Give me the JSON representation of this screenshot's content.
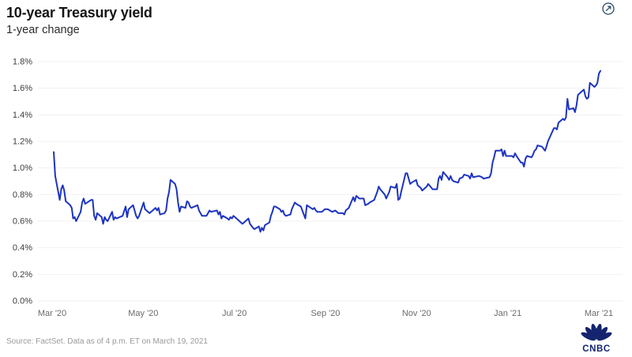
{
  "header": {
    "title": "10-year Treasury yield",
    "subtitle": "1-year change"
  },
  "controls": {
    "expand_icon": "expand-chart-icon"
  },
  "footer": {
    "source": "Source: FactSet. Data as of 4 p.m. ET on March 19, 2021",
    "logo_text": "CNBC"
  },
  "colors": {
    "line": "#1d34c1",
    "grid": "#f1f1f1",
    "y_tick_text": "#3d3d3d",
    "x_tick_text": "#6b6b6b",
    "logo_navy": "#14246e",
    "icon_navy": "#274a66"
  },
  "chart_data": {
    "type": "line",
    "title": "10-year Treasury yield",
    "subtitle": "1-year change",
    "unit": "%",
    "ylim": [
      0,
      1.8
    ],
    "y_tick_step": 0.2,
    "y_ticks": [
      "0.0%",
      "0.2%",
      "0.4%",
      "0.6%",
      "0.8%",
      "1.0%",
      "1.2%",
      "1.4%",
      "1.6%",
      "1.8%"
    ],
    "x_ticks": [
      "Mar '20",
      "May '20",
      "Jul '20",
      "Sep '20",
      "Nov '20",
      "Jan '21",
      "Mar '21"
    ],
    "grid": "horizontal",
    "legend": "none",
    "points": [
      [
        "2020-03-19",
        1.12
      ],
      [
        "2020-03-20",
        0.94
      ],
      [
        "2020-03-23",
        0.76
      ],
      [
        "2020-03-24",
        0.84
      ],
      [
        "2020-03-25",
        0.87
      ],
      [
        "2020-03-26",
        0.83
      ],
      [
        "2020-03-27",
        0.75
      ],
      [
        "2020-03-30",
        0.72
      ],
      [
        "2020-03-31",
        0.7
      ],
      [
        "2020-04-01",
        0.62
      ],
      [
        "2020-04-02",
        0.63
      ],
      [
        "2020-04-03",
        0.6
      ],
      [
        "2020-04-06",
        0.67
      ],
      [
        "2020-04-07",
        0.74
      ],
      [
        "2020-04-08",
        0.77
      ],
      [
        "2020-04-09",
        0.73
      ],
      [
        "2020-04-13",
        0.76
      ],
      [
        "2020-04-14",
        0.76
      ],
      [
        "2020-04-15",
        0.64
      ],
      [
        "2020-04-16",
        0.61
      ],
      [
        "2020-04-17",
        0.66
      ],
      [
        "2020-04-20",
        0.63
      ],
      [
        "2020-04-21",
        0.58
      ],
      [
        "2020-04-22",
        0.63
      ],
      [
        "2020-04-23",
        0.61
      ],
      [
        "2020-04-24",
        0.6
      ],
      [
        "2020-04-27",
        0.67
      ],
      [
        "2020-04-28",
        0.61
      ],
      [
        "2020-04-29",
        0.63
      ],
      [
        "2020-04-30",
        0.62
      ],
      [
        "2020-05-04",
        0.64
      ],
      [
        "2020-05-06",
        0.71
      ],
      [
        "2020-05-07",
        0.63
      ],
      [
        "2020-05-08",
        0.69
      ],
      [
        "2020-05-11",
        0.72
      ],
      [
        "2020-05-13",
        0.64
      ],
      [
        "2020-05-14",
        0.62
      ],
      [
        "2020-05-15",
        0.64
      ],
      [
        "2020-05-18",
        0.74
      ],
      [
        "2020-05-19",
        0.69
      ],
      [
        "2020-05-21",
        0.67
      ],
      [
        "2020-05-22",
        0.66
      ],
      [
        "2020-05-26",
        0.7
      ],
      [
        "2020-05-27",
        0.68
      ],
      [
        "2020-05-28",
        0.7
      ],
      [
        "2020-05-29",
        0.65
      ],
      [
        "2020-06-01",
        0.66
      ],
      [
        "2020-06-02",
        0.68
      ],
      [
        "2020-06-03",
        0.77
      ],
      [
        "2020-06-04",
        0.82
      ],
      [
        "2020-06-05",
        0.91
      ],
      [
        "2020-06-08",
        0.88
      ],
      [
        "2020-06-09",
        0.84
      ],
      [
        "2020-06-10",
        0.74
      ],
      [
        "2020-06-11",
        0.67
      ],
      [
        "2020-06-12",
        0.71
      ],
      [
        "2020-06-15",
        0.7
      ],
      [
        "2020-06-16",
        0.75
      ],
      [
        "2020-06-17",
        0.74
      ],
      [
        "2020-06-18",
        0.71
      ],
      [
        "2020-06-19",
        0.7
      ],
      [
        "2020-06-23",
        0.72
      ],
      [
        "2020-06-24",
        0.68
      ],
      [
        "2020-06-26",
        0.64
      ],
      [
        "2020-06-29",
        0.64
      ],
      [
        "2020-06-30",
        0.66
      ],
      [
        "2020-07-01",
        0.68
      ],
      [
        "2020-07-02",
        0.67
      ],
      [
        "2020-07-06",
        0.68
      ],
      [
        "2020-07-07",
        0.65
      ],
      [
        "2020-07-08",
        0.67
      ],
      [
        "2020-07-09",
        0.62
      ],
      [
        "2020-07-10",
        0.64
      ],
      [
        "2020-07-13",
        0.62
      ],
      [
        "2020-07-14",
        0.61
      ],
      [
        "2020-07-15",
        0.63
      ],
      [
        "2020-07-16",
        0.62
      ],
      [
        "2020-07-17",
        0.64
      ],
      [
        "2020-07-20",
        0.61
      ],
      [
        "2020-07-22",
        0.59
      ],
      [
        "2020-07-23",
        0.58
      ],
      [
        "2020-07-24",
        0.59
      ],
      [
        "2020-07-27",
        0.62
      ],
      [
        "2020-07-28",
        0.58
      ],
      [
        "2020-07-30",
        0.55
      ],
      [
        "2020-07-31",
        0.54
      ],
      [
        "2020-08-03",
        0.56
      ],
      [
        "2020-08-04",
        0.52
      ],
      [
        "2020-08-05",
        0.55
      ],
      [
        "2020-08-06",
        0.53
      ],
      [
        "2020-08-07",
        0.57
      ],
      [
        "2020-08-10",
        0.59
      ],
      [
        "2020-08-11",
        0.64
      ],
      [
        "2020-08-12",
        0.67
      ],
      [
        "2020-08-13",
        0.71
      ],
      [
        "2020-08-14",
        0.71
      ],
      [
        "2020-08-17",
        0.69
      ],
      [
        "2020-08-18",
        0.67
      ],
      [
        "2020-08-19",
        0.68
      ],
      [
        "2020-08-20",
        0.65
      ],
      [
        "2020-08-21",
        0.64
      ],
      [
        "2020-08-24",
        0.65
      ],
      [
        "2020-08-25",
        0.69
      ],
      [
        "2020-08-27",
        0.74
      ],
      [
        "2020-08-28",
        0.73
      ],
      [
        "2020-08-31",
        0.71
      ],
      [
        "2020-09-01",
        0.68
      ],
      [
        "2020-09-02",
        0.65
      ],
      [
        "2020-09-03",
        0.62
      ],
      [
        "2020-09-04",
        0.72
      ],
      [
        "2020-09-08",
        0.69
      ],
      [
        "2020-09-09",
        0.7
      ],
      [
        "2020-09-10",
        0.68
      ],
      [
        "2020-09-11",
        0.67
      ],
      [
        "2020-09-14",
        0.67
      ],
      [
        "2020-09-16",
        0.69
      ],
      [
        "2020-09-18",
        0.69
      ],
      [
        "2020-09-21",
        0.67
      ],
      [
        "2020-09-23",
        0.68
      ],
      [
        "2020-09-25",
        0.66
      ],
      [
        "2020-09-28",
        0.66
      ],
      [
        "2020-09-29",
        0.65
      ],
      [
        "2020-09-30",
        0.68
      ],
      [
        "2020-10-02",
        0.7
      ],
      [
        "2020-10-05",
        0.78
      ],
      [
        "2020-10-06",
        0.75
      ],
      [
        "2020-10-07",
        0.79
      ],
      [
        "2020-10-09",
        0.77
      ],
      [
        "2020-10-12",
        0.77
      ],
      [
        "2020-10-13",
        0.72
      ],
      [
        "2020-10-15",
        0.73
      ],
      [
        "2020-10-16",
        0.74
      ],
      [
        "2020-10-19",
        0.76
      ],
      [
        "2020-10-20",
        0.79
      ],
      [
        "2020-10-21",
        0.82
      ],
      [
        "2020-10-22",
        0.86
      ],
      [
        "2020-10-23",
        0.84
      ],
      [
        "2020-10-26",
        0.8
      ],
      [
        "2020-10-27",
        0.77
      ],
      [
        "2020-10-29",
        0.82
      ],
      [
        "2020-10-30",
        0.86
      ],
      [
        "2020-11-02",
        0.85
      ],
      [
        "2020-11-03",
        0.88
      ],
      [
        "2020-11-04",
        0.76
      ],
      [
        "2020-11-05",
        0.77
      ],
      [
        "2020-11-06",
        0.82
      ],
      [
        "2020-11-09",
        0.96
      ],
      [
        "2020-11-10",
        0.96
      ],
      [
        "2020-11-12",
        0.88
      ],
      [
        "2020-11-13",
        0.89
      ],
      [
        "2020-11-16",
        0.91
      ],
      [
        "2020-11-17",
        0.87
      ],
      [
        "2020-11-19",
        0.85
      ],
      [
        "2020-11-20",
        0.83
      ],
      [
        "2020-11-23",
        0.86
      ],
      [
        "2020-11-24",
        0.88
      ],
      [
        "2020-11-27",
        0.84
      ],
      [
        "2020-11-30",
        0.84
      ],
      [
        "2020-12-01",
        0.92
      ],
      [
        "2020-12-02",
        0.94
      ],
      [
        "2020-12-03",
        0.91
      ],
      [
        "2020-12-04",
        0.97
      ],
      [
        "2020-12-07",
        0.93
      ],
      [
        "2020-12-08",
        0.91
      ],
      [
        "2020-12-09",
        0.94
      ],
      [
        "2020-12-10",
        0.91
      ],
      [
        "2020-12-11",
        0.9
      ],
      [
        "2020-12-14",
        0.89
      ],
      [
        "2020-12-15",
        0.92
      ],
      [
        "2020-12-17",
        0.93
      ],
      [
        "2020-12-18",
        0.95
      ],
      [
        "2020-12-21",
        0.94
      ],
      [
        "2020-12-22",
        0.92
      ],
      [
        "2020-12-23",
        0.96
      ],
      [
        "2020-12-24",
        0.93
      ],
      [
        "2020-12-28",
        0.94
      ],
      [
        "2020-12-30",
        0.93
      ],
      [
        "2020-12-31",
        0.92
      ],
      [
        "2021-01-04",
        0.93
      ],
      [
        "2021-01-05",
        0.96
      ],
      [
        "2021-01-06",
        1.04
      ],
      [
        "2021-01-07",
        1.08
      ],
      [
        "2021-01-08",
        1.13
      ],
      [
        "2021-01-11",
        1.13
      ],
      [
        "2021-01-12",
        1.14
      ],
      [
        "2021-01-13",
        1.09
      ],
      [
        "2021-01-14",
        1.13
      ],
      [
        "2021-01-15",
        1.09
      ],
      [
        "2021-01-19",
        1.09
      ],
      [
        "2021-01-20",
        1.08
      ],
      [
        "2021-01-21",
        1.11
      ],
      [
        "2021-01-22",
        1.09
      ],
      [
        "2021-01-25",
        1.04
      ],
      [
        "2021-01-26",
        1.04
      ],
      [
        "2021-01-27",
        1.01
      ],
      [
        "2021-01-28",
        1.07
      ],
      [
        "2021-01-29",
        1.09
      ],
      [
        "2021-02-01",
        1.08
      ],
      [
        "2021-02-02",
        1.1
      ],
      [
        "2021-02-03",
        1.13
      ],
      [
        "2021-02-04",
        1.14
      ],
      [
        "2021-02-05",
        1.17
      ],
      [
        "2021-02-08",
        1.16
      ],
      [
        "2021-02-10",
        1.13
      ],
      [
        "2021-02-11",
        1.16
      ],
      [
        "2021-02-12",
        1.2
      ],
      [
        "2021-02-16",
        1.3
      ],
      [
        "2021-02-17",
        1.3
      ],
      [
        "2021-02-18",
        1.29
      ],
      [
        "2021-02-19",
        1.34
      ],
      [
        "2021-02-22",
        1.37
      ],
      [
        "2021-02-23",
        1.36
      ],
      [
        "2021-02-24",
        1.38
      ],
      [
        "2021-02-25",
        1.52
      ],
      [
        "2021-02-26",
        1.44
      ],
      [
        "2021-03-01",
        1.45
      ],
      [
        "2021-03-02",
        1.42
      ],
      [
        "2021-03-03",
        1.47
      ],
      [
        "2021-03-04",
        1.55
      ],
      [
        "2021-03-05",
        1.56
      ],
      [
        "2021-03-08",
        1.59
      ],
      [
        "2021-03-09",
        1.54
      ],
      [
        "2021-03-10",
        1.52
      ],
      [
        "2021-03-11",
        1.53
      ],
      [
        "2021-03-12",
        1.64
      ],
      [
        "2021-03-15",
        1.61
      ],
      [
        "2021-03-16",
        1.62
      ],
      [
        "2021-03-17",
        1.64
      ],
      [
        "2021-03-18",
        1.71
      ],
      [
        "2021-03-19",
        1.73
      ]
    ]
  }
}
